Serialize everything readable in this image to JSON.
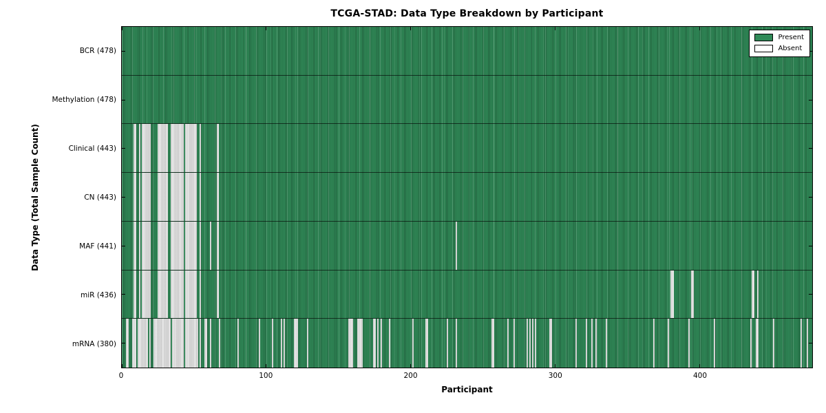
{
  "chart_data": {
    "type": "heatmap",
    "title": "TCGA-STAD: Data Type Breakdown by Participant",
    "xlabel": "Participant",
    "ylabel": "Data Type (Total Sample Count)",
    "n_participants": 478,
    "xlim": [
      0,
      478
    ],
    "x_ticks": [
      0,
      100,
      200,
      300,
      400
    ],
    "grid": false,
    "legend_position": "upper right",
    "legend": [
      "Present",
      "Absent"
    ],
    "colors": {
      "present": "#308a58",
      "absent": "#d2d2d2",
      "edge": "#000000"
    },
    "rows": [
      {
        "name": "BCR",
        "label": "BCR (478)",
        "present_count": 478,
        "absent_count": 0,
        "absent_participants": []
      },
      {
        "name": "Methylation",
        "label": "Methylation (478)",
        "present_count": 478,
        "absent_count": 0,
        "absent_participants": []
      },
      {
        "name": "Clinical",
        "label": "Clinical (443)",
        "present_count": 443,
        "absent_count": 35,
        "absent_participants": [
          8,
          9,
          12,
          14,
          15,
          16,
          17,
          18,
          19,
          25,
          26,
          27,
          28,
          29,
          30,
          31,
          34,
          35,
          36,
          37,
          38,
          39,
          40,
          41,
          42,
          44,
          45,
          46,
          47,
          48,
          49,
          50,
          51,
          54,
          66
        ]
      },
      {
        "name": "CN",
        "label": "CN (443)",
        "present_count": 443,
        "absent_count": 35,
        "absent_participants": [
          8,
          9,
          12,
          14,
          15,
          16,
          17,
          18,
          19,
          25,
          26,
          27,
          28,
          29,
          30,
          31,
          34,
          35,
          36,
          37,
          38,
          39,
          40,
          41,
          42,
          44,
          45,
          46,
          47,
          48,
          49,
          50,
          51,
          54,
          66
        ]
      },
      {
        "name": "MAF",
        "label": "MAF (441)",
        "present_count": 441,
        "absent_count": 37,
        "absent_participants": [
          8,
          9,
          12,
          14,
          15,
          16,
          17,
          18,
          19,
          25,
          26,
          27,
          28,
          29,
          30,
          31,
          34,
          35,
          36,
          37,
          38,
          39,
          40,
          41,
          42,
          44,
          45,
          46,
          47,
          48,
          49,
          50,
          51,
          54,
          61,
          66,
          231
        ]
      },
      {
        "name": "miR",
        "label": "miR (436)",
        "present_count": 436,
        "absent_count": 42,
        "absent_participants": [
          8,
          9,
          12,
          14,
          15,
          16,
          17,
          18,
          19,
          25,
          26,
          27,
          28,
          29,
          30,
          31,
          34,
          35,
          36,
          37,
          38,
          39,
          40,
          41,
          42,
          44,
          45,
          46,
          47,
          48,
          49,
          50,
          51,
          54,
          66,
          380,
          381,
          394,
          395,
          436,
          437,
          440
        ]
      },
      {
        "name": "mRNA",
        "label": "mRNA (380)",
        "present_count": 380,
        "absent_count": 98,
        "absent_participants": [
          3,
          4,
          7,
          8,
          9,
          11,
          12,
          13,
          14,
          15,
          16,
          17,
          19,
          22,
          23,
          24,
          25,
          26,
          27,
          28,
          29,
          30,
          31,
          32,
          33,
          35,
          36,
          37,
          38,
          39,
          40,
          41,
          42,
          44,
          45,
          46,
          47,
          48,
          49,
          50,
          51,
          52,
          54,
          57,
          58,
          61,
          67,
          80,
          95,
          104,
          110,
          112,
          119,
          120,
          121,
          128,
          157,
          158,
          159,
          163,
          164,
          165,
          166,
          174,
          175,
          177,
          179,
          185,
          201,
          210,
          211,
          225,
          231,
          256,
          257,
          267,
          271,
          280,
          282,
          284,
          286,
          296,
          297,
          314,
          321,
          325,
          328,
          335,
          368,
          378,
          392,
          410,
          435,
          439,
          440,
          451,
          470,
          474
        ]
      }
    ]
  }
}
